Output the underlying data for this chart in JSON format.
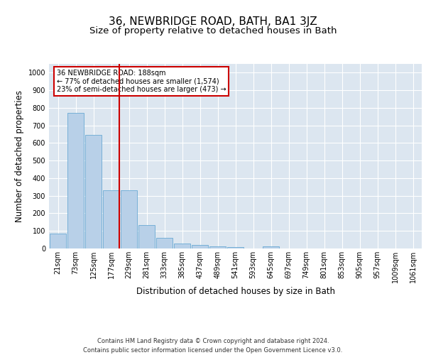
{
  "title1": "36, NEWBRIDGE ROAD, BATH, BA1 3JZ",
  "title2": "Size of property relative to detached houses in Bath",
  "xlabel": "Distribution of detached houses by size in Bath",
  "ylabel": "Number of detached properties",
  "categories": [
    "21sqm",
    "73sqm",
    "125sqm",
    "177sqm",
    "229sqm",
    "281sqm",
    "333sqm",
    "385sqm",
    "437sqm",
    "489sqm",
    "541sqm",
    "593sqm",
    "645sqm",
    "697sqm",
    "749sqm",
    "801sqm",
    "853sqm",
    "905sqm",
    "957sqm",
    "1009sqm",
    "1061sqm"
  ],
  "values": [
    85,
    770,
    645,
    330,
    330,
    135,
    60,
    27,
    20,
    14,
    10,
    0,
    12,
    0,
    0,
    0,
    0,
    0,
    0,
    0,
    0
  ],
  "bar_color": "#b8d0e8",
  "bar_edgecolor": "#6aaad4",
  "vline_color": "#cc0000",
  "annotation_text": "36 NEWBRIDGE ROAD: 188sqm\n← 77% of detached houses are smaller (1,574)\n23% of semi-detached houses are larger (473) →",
  "annotation_box_color": "#ffffff",
  "annotation_box_edgecolor": "#cc0000",
  "ylim": [
    0,
    1050
  ],
  "yticks": [
    0,
    100,
    200,
    300,
    400,
    500,
    600,
    700,
    800,
    900,
    1000
  ],
  "background_color": "#dce6f0",
  "footer1": "Contains HM Land Registry data © Crown copyright and database right 2024.",
  "footer2": "Contains public sector information licensed under the Open Government Licence v3.0.",
  "title1_fontsize": 11,
  "title2_fontsize": 9.5,
  "axis_label_fontsize": 8.5,
  "tick_fontsize": 7,
  "footer_fontsize": 6
}
